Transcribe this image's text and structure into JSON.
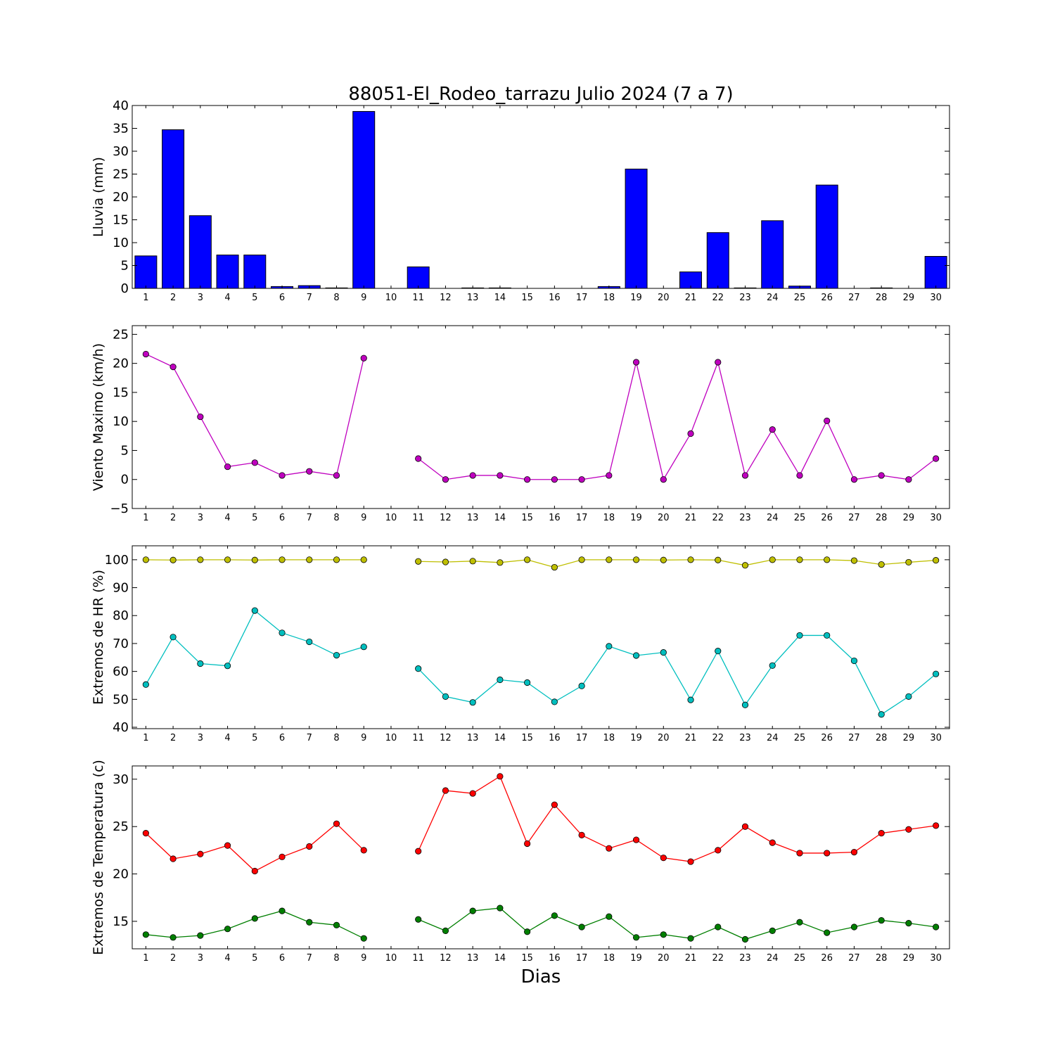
{
  "chart_data": {
    "title": "88051-El_Rodeo_tarrazu Julio 2024  (7 a 7)",
    "xlabel": "Dias",
    "days": [
      1,
      2,
      3,
      4,
      5,
      6,
      7,
      8,
      9,
      10,
      11,
      12,
      13,
      14,
      15,
      16,
      17,
      18,
      19,
      20,
      21,
      22,
      23,
      24,
      25,
      26,
      27,
      28,
      29,
      30
    ],
    "panels": [
      {
        "type": "bar",
        "ylabel": "Lluvia (mm)",
        "ylim": [
          0,
          40
        ],
        "yticks": [
          0,
          5,
          10,
          15,
          20,
          25,
          30,
          35,
          40
        ],
        "series": [
          {
            "color": "#0000ff",
            "values": [
              7.1,
              34.7,
              15.9,
              7.3,
              7.3,
              0.4,
              0.6,
              0.1,
              38.7,
              0,
              4.7,
              0,
              0.1,
              0.1,
              0,
              0,
              0,
              0.4,
              26.1,
              0,
              3.6,
              12.2,
              0.1,
              14.8,
              0.5,
              22.6,
              0,
              0.1,
              0,
              7.0
            ]
          }
        ]
      },
      {
        "type": "line",
        "ylabel": "Viento Maximo (km/h)",
        "ylim": [
          -5,
          26.5
        ],
        "yticks": [
          -5,
          0,
          5,
          10,
          15,
          20,
          25
        ],
        "yticklabels": [
          "−5",
          "0",
          "5",
          "10",
          "15",
          "20",
          "25"
        ],
        "series": [
          {
            "color": "#bf00bf",
            "values": [
              21.6,
              19.4,
              10.8,
              2.2,
              2.9,
              0.7,
              1.4,
              0.7,
              20.9,
              null,
              3.6,
              0,
              0.7,
              0.7,
              0,
              0,
              0,
              0.7,
              20.2,
              0,
              7.9,
              20.2,
              0.7,
              8.6,
              0.7,
              10.1,
              0,
              0.7,
              0,
              3.6
            ]
          }
        ]
      },
      {
        "type": "line",
        "ylabel": "Extremos de HR (%)",
        "ylim": [
          39.5,
          105
        ],
        "yticks": [
          40,
          50,
          60,
          70,
          80,
          90,
          100
        ],
        "series": [
          {
            "color": "#bfbf00",
            "values": [
              100,
              99.9,
              100,
              100,
              99.9,
              100,
              100,
              100,
              100,
              null,
              99.4,
              99.2,
              99.5,
              99,
              100,
              97.3,
              100,
              100,
              100,
              99.9,
              100,
              99.9,
              98,
              100,
              100,
              100,
              99.7,
              98.3,
              99.1,
              99.8
            ]
          },
          {
            "color": "#00bfbf",
            "values": [
              55.3,
              72.3,
              62.8,
              62,
              81.8,
              73.8,
              70.6,
              65.8,
              68.8,
              null,
              61,
              51,
              48.9,
              57,
              56,
              49.1,
              54.8,
              69,
              65.7,
              66.8,
              49.8,
              67.3,
              48,
              62.1,
              72.9,
              72.9,
              63.8,
              44.6,
              51,
              59.1
            ]
          }
        ]
      },
      {
        "type": "line",
        "ylabel": "Extremos de Temperatura (c)",
        "ylim": [
          12.1,
          31.4
        ],
        "yticks": [
          15,
          20,
          25,
          30
        ],
        "series": [
          {
            "color": "#ff0000",
            "values": [
              24.3,
              21.6,
              22.1,
              23,
              20.3,
              21.8,
              22.9,
              25.3,
              22.5,
              null,
              22.4,
              28.8,
              28.5,
              30.3,
              23.2,
              27.3,
              24.1,
              22.7,
              23.6,
              21.7,
              21.3,
              22.5,
              25,
              23.3,
              22.2,
              22.2,
              22.3,
              24.3,
              24.7,
              25.1
            ]
          },
          {
            "color": "#007f00",
            "values": [
              13.6,
              13.3,
              13.5,
              14.2,
              15.3,
              16.1,
              14.9,
              14.6,
              13.2,
              null,
              15.2,
              14,
              16.1,
              16.4,
              13.9,
              15.6,
              14.4,
              15.5,
              13.3,
              13.6,
              13.2,
              14.4,
              13.1,
              14,
              14.9,
              13.8,
              14.4,
              15.1,
              14.8,
              14.4
            ]
          }
        ]
      }
    ]
  }
}
